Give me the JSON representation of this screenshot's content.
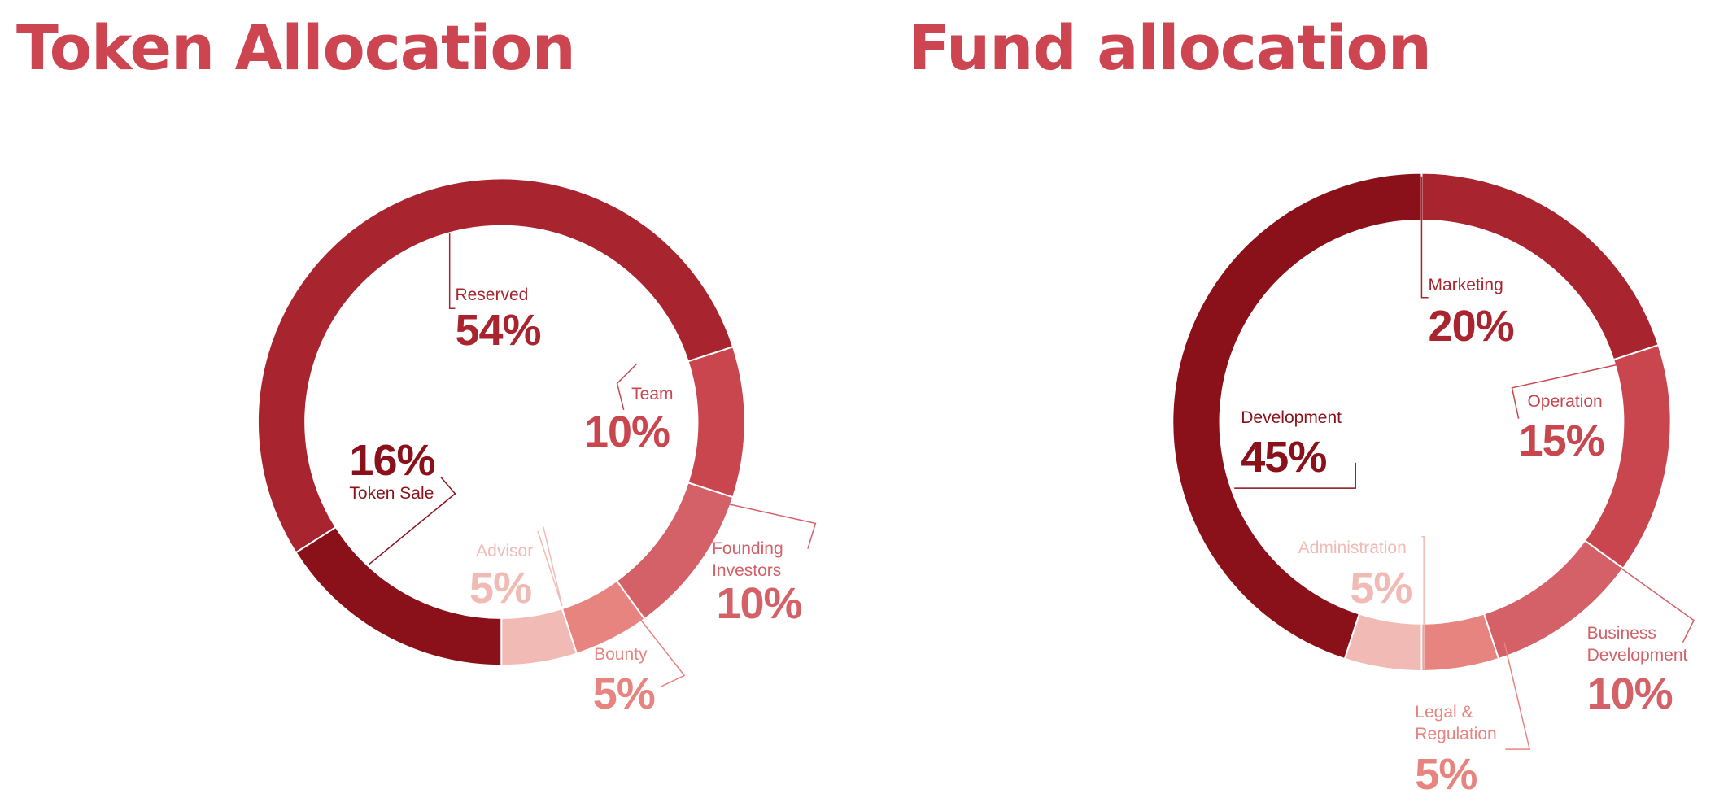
{
  "chart_data": [
    {
      "type": "pie",
      "title": "Token Allocation",
      "categories": [
        "Token Sale",
        "Reserved",
        "Team",
        "Founding Investors",
        "Bounty",
        "Advisor"
      ],
      "values": [
        16,
        54,
        10,
        10,
        5,
        5
      ],
      "value_labels": [
        "16%",
        "54%",
        "10%",
        "10%",
        "5%",
        "5%"
      ],
      "colors": [
        "#8a1119",
        "#a8242e",
        "#c9464f",
        "#d46068",
        "#e7847f",
        "#f1bab5"
      ]
    },
    {
      "type": "pie",
      "title": "Fund allocation",
      "categories": [
        "Marketing",
        "Operation",
        "Business Development",
        "Legal & Regulation",
        "Administration",
        "Development"
      ],
      "values": [
        20,
        15,
        10,
        5,
        5,
        45
      ],
      "value_labels": [
        "20%",
        "15%",
        "10%",
        "5%",
        "5%",
        "45%"
      ],
      "colors": [
        "#a8242e",
        "#c9464f",
        "#d46068",
        "#e7847f",
        "#f1bab5",
        "#8a1119"
      ]
    }
  ]
}
